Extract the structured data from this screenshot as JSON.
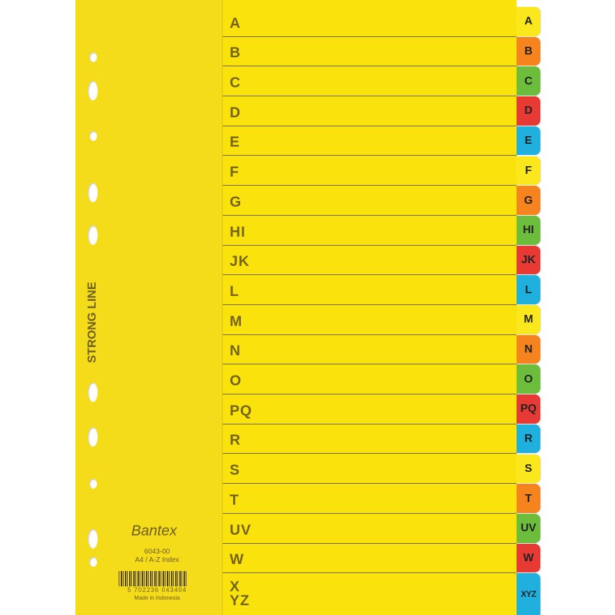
{
  "brand": {
    "series": "STRONG LINE",
    "small": "Bantex",
    "logo": "Bantex"
  },
  "product": {
    "code": "6043-00",
    "name": "A4 / A-Z Index",
    "barcode": "5 702236 043404",
    "origin": "Made in Indonesia"
  },
  "rows": [
    "A",
    "B",
    "C",
    "D",
    "E",
    "F",
    "G",
    "HI",
    "JK",
    "L",
    "M",
    "N",
    "O",
    "PQ",
    "R",
    "S",
    "T",
    "UV",
    "W",
    "X YZ"
  ],
  "tabs": [
    {
      "label": "A",
      "color": "#fbe81c"
    },
    {
      "label": "B",
      "color": "#f5841f"
    },
    {
      "label": "C",
      "color": "#6cbd3c"
    },
    {
      "label": "D",
      "color": "#e83a35"
    },
    {
      "label": "E",
      "color": "#1fb0dd"
    },
    {
      "label": "F",
      "color": "#fbe81c"
    },
    {
      "label": "G",
      "color": "#f5841f"
    },
    {
      "label": "HI",
      "color": "#6cbd3c"
    },
    {
      "label": "JK",
      "color": "#e83a35"
    },
    {
      "label": "L",
      "color": "#1fb0dd"
    },
    {
      "label": "M",
      "color": "#fbe81c"
    },
    {
      "label": "N",
      "color": "#f5841f"
    },
    {
      "label": "O",
      "color": "#6cbd3c"
    },
    {
      "label": "PQ",
      "color": "#e83a35"
    },
    {
      "label": "R",
      "color": "#1fb0dd"
    },
    {
      "label": "S",
      "color": "#fbe81c"
    },
    {
      "label": "T",
      "color": "#f5841f"
    },
    {
      "label": "UV",
      "color": "#6cbd3c"
    },
    {
      "label": "W",
      "color": "#e83a35"
    },
    {
      "label": "XYZ",
      "color": "#1fb0dd"
    }
  ]
}
